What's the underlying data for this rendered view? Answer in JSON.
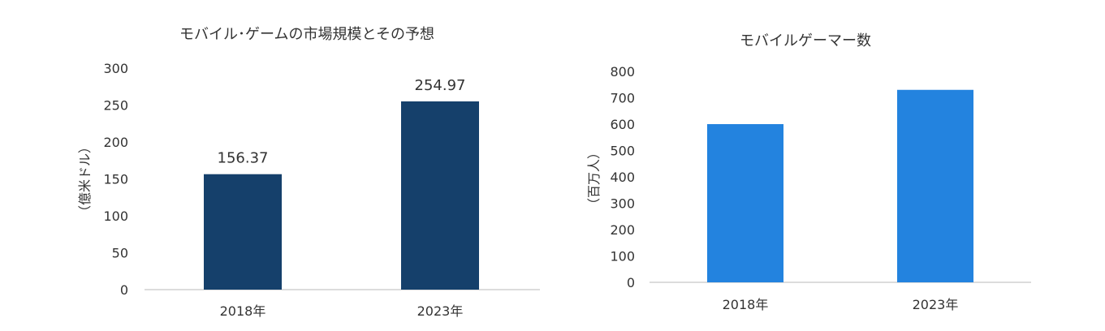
{
  "chart_data": [
    {
      "type": "bar",
      "title": "モバイル･ゲームの市場規模とその予想",
      "ylabel": "（億米ドル）",
      "xlabel": "",
      "categories": [
        "2018年",
        "2023年"
      ],
      "values": [
        156.37,
        254.97
      ],
      "value_labels": [
        "156.37",
        "254.97"
      ],
      "ylim": [
        0,
        300
      ],
      "yticks": [
        "0",
        "50",
        "100",
        "150",
        "200",
        "250",
        "300"
      ],
      "color": "#15406b",
      "grid": false
    },
    {
      "type": "bar",
      "title": "モバイルゲーマー数",
      "ylabel": "（百万人）",
      "xlabel": "",
      "categories": [
        "2018年",
        "2023年"
      ],
      "values": [
        600,
        730
      ],
      "ylim": [
        0,
        800
      ],
      "yticks": [
        "0",
        "100",
        "200",
        "300",
        "400",
        "500",
        "600",
        "700",
        "800"
      ],
      "color": "#2383df",
      "grid": false
    }
  ]
}
